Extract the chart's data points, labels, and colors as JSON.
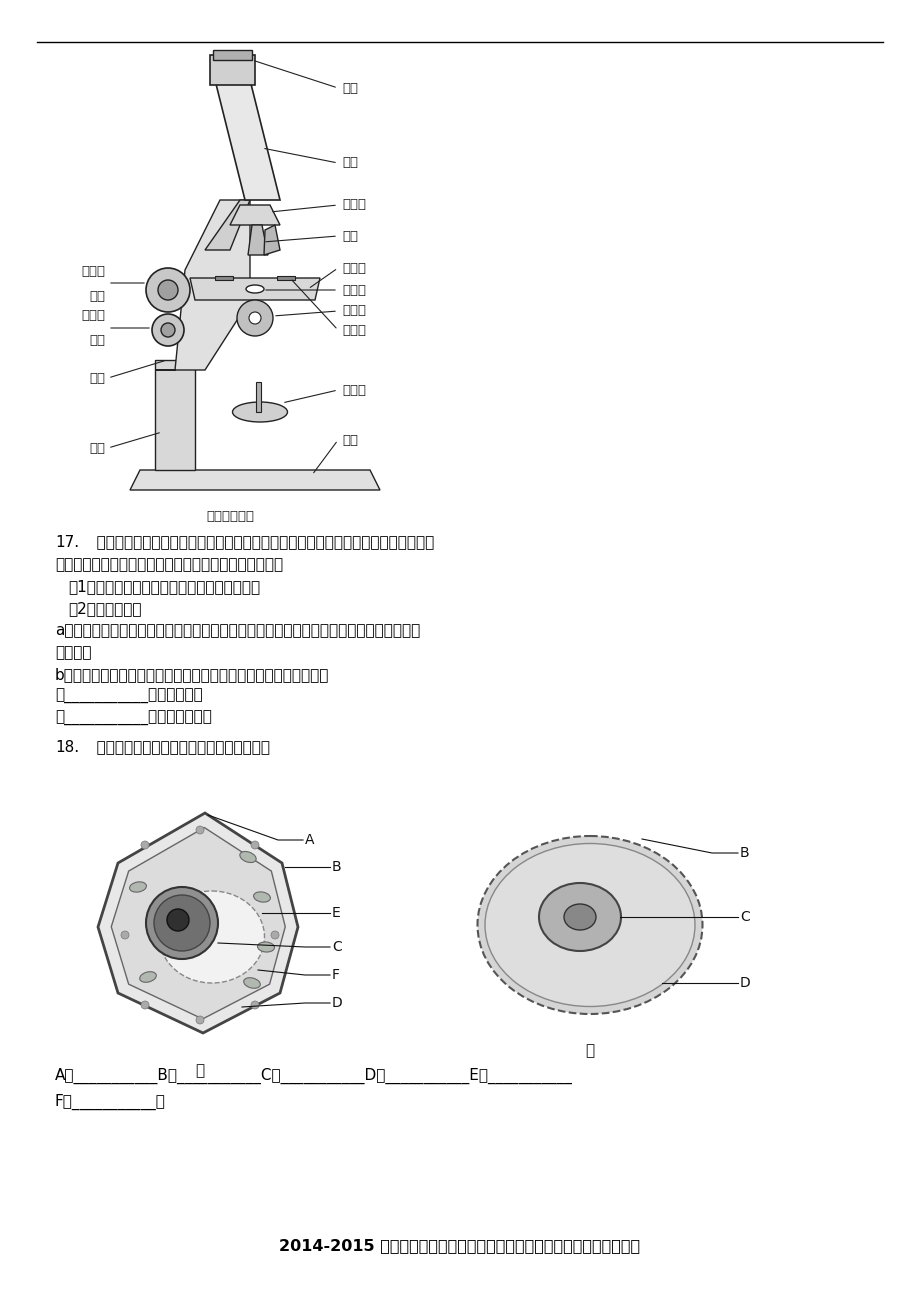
{
  "bg_color": "#ffffff",
  "text_color": "#000000",
  "page_width": 9.2,
  "page_height": 13.02,
  "microscope_caption": "显微镜的结构",
  "q17_number": "17.",
  "q17_text1": "   生物兴趣小组发现：窗台上栽种的植物总是朝室外一侧比室内一侧长得茂盛，为探明",
  "q17_text2": "其原因，兴趣小组的同学作出了假设并进行了简单探究：",
  "q17_text3": "（1）假设：植物的枝叶具有向光生长的特性．",
  "q17_text4": "（2）实验计划：",
  "q17_text5": "a、取两盆长势相同的同种植物甲和乙，将甲放在只有一扇小窗的暗室内，乙放在无遮挡有",
  "q17_text6": "露天下．",
  "q17_text7": "b、按时给甲、乙浇相同的水和施相同的肥，定时观察它们的长势．",
  "q17_text8": "若___________，假设成立．",
  "q17_text9": "若___________，假设不成立．",
  "q18_number": "18.",
  "q18_text": "   指出下列细胞中字母代表的细胞结构名称．",
  "answer_line1": "A、___________B、___________C、___________D、___________E、___________",
  "answer_line2": "F、___________．",
  "footer": "2014-2015 学年贵州省遵义市绥阳县洋川中学七年级（上）期中生物试卷",
  "microscope_labels_right": [
    "目镜",
    "镜筒",
    "转换器",
    "物镜",
    "载物台",
    "通光孔",
    "遮光器",
    "压片夹",
    "反光镜",
    "镜座"
  ],
  "microscope_labels_left": [
    "粗准焦\n螺旋",
    "细准焦\n螺旋",
    "镜臂",
    "镜柱"
  ]
}
